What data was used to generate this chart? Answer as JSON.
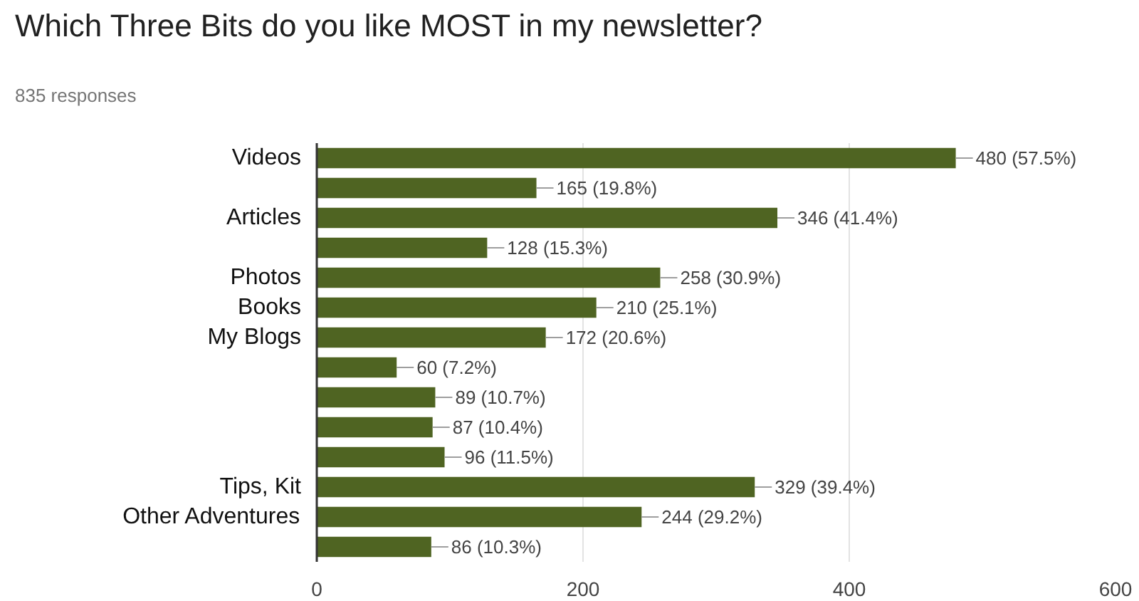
{
  "chart_data": {
    "type": "bar",
    "orientation": "horizontal",
    "title": "Which Three Bits do you like MOST in my newsletter?",
    "subtitle": "835 responses",
    "categories": [
      "Videos",
      null,
      "Articles",
      null,
      "Photos",
      "Books",
      "My Blogs",
      null,
      null,
      null,
      null,
      "Tips, Kit",
      "Other Adventures",
      null
    ],
    "values": [
      480,
      165,
      346,
      128,
      258,
      210,
      172,
      60,
      89,
      87,
      96,
      329,
      244,
      86
    ],
    "value_labels": [
      "480 (57.5%)",
      "165 (19.8%)",
      "346 (41.4%)",
      "128 (15.3%)",
      "258 (30.9%)",
      "210 (25.1%)",
      "172 (20.6%)",
      "60 (7.2%)",
      "89 (10.7%)",
      "87 (10.4%)",
      "96 (11.5%)",
      "329 (39.4%)",
      "244 (29.2%)",
      "86 (10.3%)"
    ],
    "color": "#4f6422",
    "xlim": [
      0,
      600
    ],
    "xticks": [
      0,
      200,
      400,
      600
    ],
    "grid": "x"
  }
}
